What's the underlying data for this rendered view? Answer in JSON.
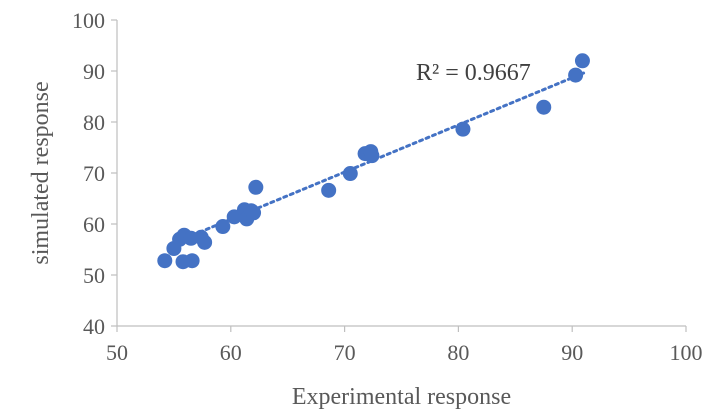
{
  "chart_data": {
    "type": "scatter",
    "xlabel": "Experimental response",
    "ylabel": "simulated response",
    "xlim": [
      50,
      100
    ],
    "ylim": [
      40,
      100
    ],
    "x_ticks": [
      50,
      60,
      70,
      80,
      90,
      100
    ],
    "y_ticks": [
      40,
      50,
      60,
      70,
      80,
      90,
      100
    ],
    "grid": false,
    "legend": "none",
    "annotation": "R² = 0.9667",
    "trendline": {
      "type": "linear",
      "x": [
        55,
        91
      ],
      "y": [
        56.3,
        89.6
      ],
      "style": "dotted"
    },
    "marker_color": "#4472c4",
    "points": [
      [
        54.2,
        52.8
      ],
      [
        55.8,
        52.6
      ],
      [
        56.6,
        52.8
      ],
      [
        55.0,
        55.2
      ],
      [
        55.5,
        57.0
      ],
      [
        55.9,
        57.8
      ],
      [
        56.5,
        57.2
      ],
      [
        57.4,
        57.4
      ],
      [
        57.7,
        56.4
      ],
      [
        59.3,
        59.5
      ],
      [
        60.3,
        61.4
      ],
      [
        61.2,
        62.8
      ],
      [
        61.4,
        61.0
      ],
      [
        61.8,
        62.6
      ],
      [
        62.0,
        62.2
      ],
      [
        62.2,
        67.2
      ],
      [
        68.6,
        66.6
      ],
      [
        70.5,
        69.9
      ],
      [
        71.8,
        73.8
      ],
      [
        72.3,
        74.2
      ],
      [
        72.4,
        73.4
      ],
      [
        80.4,
        78.6
      ],
      [
        87.5,
        82.9
      ],
      [
        90.3,
        89.2
      ],
      [
        90.9,
        92.0
      ]
    ]
  }
}
